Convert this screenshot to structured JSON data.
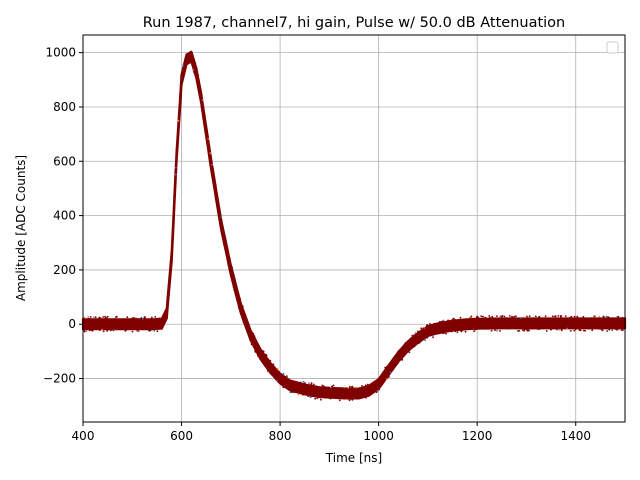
{
  "chart_data": {
    "type": "scatter",
    "title": "Run 1987, channel7, hi gain, Pulse w/ 50.0 dB Attenuation",
    "xlabel": "Time [ns]",
    "ylabel": "Amplitude [ADC Counts]",
    "xlim": [
      400,
      1500
    ],
    "ylim": [
      -360,
      1065
    ],
    "xticks": [
      400,
      600,
      800,
      1000,
      1200,
      1400
    ],
    "yticks": [
      -200,
      0,
      200,
      400,
      600,
      800,
      1000
    ],
    "grid": true,
    "legend": {
      "placement": "top-right",
      "entries": []
    },
    "colors": {
      "band": "#800000",
      "speckle": [
        "#ff7f0e",
        "#1f77b4",
        "#9467bd"
      ]
    },
    "series": [
      {
        "name": "",
        "band_halfwidth": 18,
        "x": [
          400,
          450,
          500,
          540,
          560,
          570,
          580,
          590,
          600,
          610,
          620,
          630,
          640,
          660,
          680,
          700,
          720,
          740,
          760,
          780,
          800,
          820,
          850,
          880,
          900,
          930,
          960,
          980,
          1000,
          1020,
          1040,
          1060,
          1080,
          1100,
          1120,
          1150,
          1180,
          1200,
          1250,
          1300,
          1350,
          1400,
          1450,
          1500
        ],
        "values": [
          0,
          0,
          0,
          0,
          2,
          40,
          250,
          620,
          900,
          975,
          985,
          925,
          830,
          590,
          370,
          200,
          60,
          -40,
          -110,
          -160,
          -200,
          -225,
          -240,
          -250,
          -252,
          -255,
          -255,
          -245,
          -220,
          -170,
          -120,
          -80,
          -50,
          -25,
          -15,
          -5,
          0,
          2,
          3,
          3,
          3,
          3,
          3,
          3
        ]
      }
    ]
  }
}
